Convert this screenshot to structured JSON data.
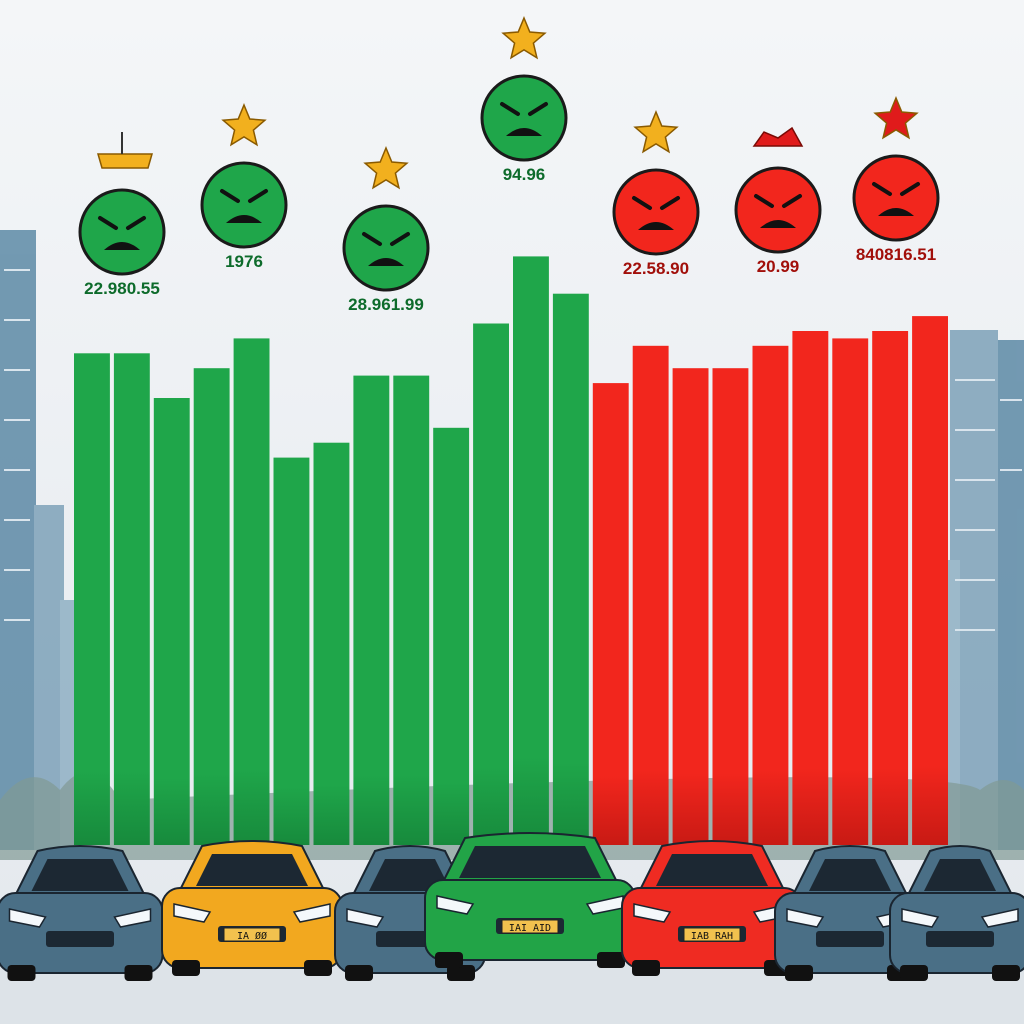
{
  "chart_data": {
    "type": "bar",
    "title": "",
    "xlabel": "",
    "ylabel": "",
    "ylim": [
      0,
      100
    ],
    "grid": false,
    "legend": "none",
    "colors": {
      "positive": "#1fa64a",
      "negative": "#f2261d",
      "star": "#f2b01e",
      "star_red": "#e01b1b"
    },
    "bars": [
      {
        "sentiment": "positive",
        "value": 66
      },
      {
        "sentiment": "positive",
        "value": 66
      },
      {
        "sentiment": "positive",
        "value": 60
      },
      {
        "sentiment": "positive",
        "value": 64
      },
      {
        "sentiment": "positive",
        "value": 68
      },
      {
        "sentiment": "positive",
        "value": 52
      },
      {
        "sentiment": "positive",
        "value": 54
      },
      {
        "sentiment": "positive",
        "value": 63
      },
      {
        "sentiment": "positive",
        "value": 63
      },
      {
        "sentiment": "positive",
        "value": 56
      },
      {
        "sentiment": "positive",
        "value": 70
      },
      {
        "sentiment": "positive",
        "value": 79
      },
      {
        "sentiment": "positive",
        "value": 74
      },
      {
        "sentiment": "negative",
        "value": 62
      },
      {
        "sentiment": "negative",
        "value": 67
      },
      {
        "sentiment": "negative",
        "value": 64
      },
      {
        "sentiment": "negative",
        "value": 64
      },
      {
        "sentiment": "negative",
        "value": 67
      },
      {
        "sentiment": "negative",
        "value": 69
      },
      {
        "sentiment": "negative",
        "value": 68
      },
      {
        "sentiment": "negative",
        "value": 69
      },
      {
        "sentiment": "negative",
        "value": 71
      }
    ],
    "annotations": [
      {
        "label": "22.980.55",
        "sentiment": "positive",
        "marker": "bar"
      },
      {
        "label": "1976",
        "sentiment": "positive",
        "marker": "star"
      },
      {
        "label": "28.961.99",
        "sentiment": "positive",
        "marker": "star"
      },
      {
        "label": "94.96",
        "sentiment": "positive",
        "marker": "star"
      },
      {
        "label": "22.58.90",
        "sentiment": "negative",
        "marker": "star"
      },
      {
        "label": "20.99",
        "sentiment": "negative",
        "marker": "flag"
      },
      {
        "label": "840816.51",
        "sentiment": "negative",
        "marker": "star"
      }
    ]
  },
  "cars": [
    {
      "color": "#4a6f86",
      "plate": ""
    },
    {
      "color": "#f2a81f",
      "plate": "IA ØØ"
    },
    {
      "color": "#4a6f86",
      "plate": ""
    },
    {
      "color": "#22a447",
      "plate": "IAI AID"
    },
    {
      "color": "#ef2b22",
      "plate": "IAB RAH"
    },
    {
      "color": "#4a6f86",
      "plate": ""
    },
    {
      "color": "#4a6f86",
      "plate": ""
    }
  ]
}
